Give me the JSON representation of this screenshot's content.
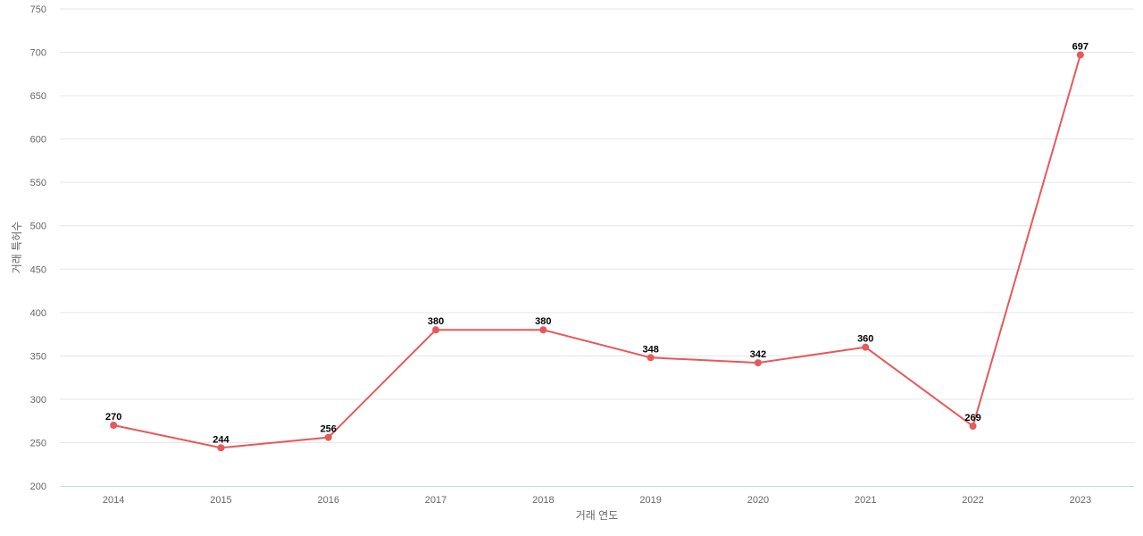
{
  "chart_data": {
    "type": "line",
    "x": [
      "2014",
      "2015",
      "2016",
      "2017",
      "2018",
      "2019",
      "2020",
      "2021",
      "2022",
      "2023"
    ],
    "series": [
      {
        "values": [
          270,
          244,
          256,
          380,
          380,
          348,
          342,
          360,
          269,
          697
        ]
      }
    ],
    "xlabel": "거래 연도",
    "ylabel": "거래 특허수",
    "ylim": [
      200,
      750
    ],
    "yticks": [
      200,
      250,
      300,
      350,
      400,
      450,
      500,
      550,
      600,
      650,
      700,
      750
    ],
    "grid": true,
    "legend": "none",
    "color": "#e8585a"
  }
}
